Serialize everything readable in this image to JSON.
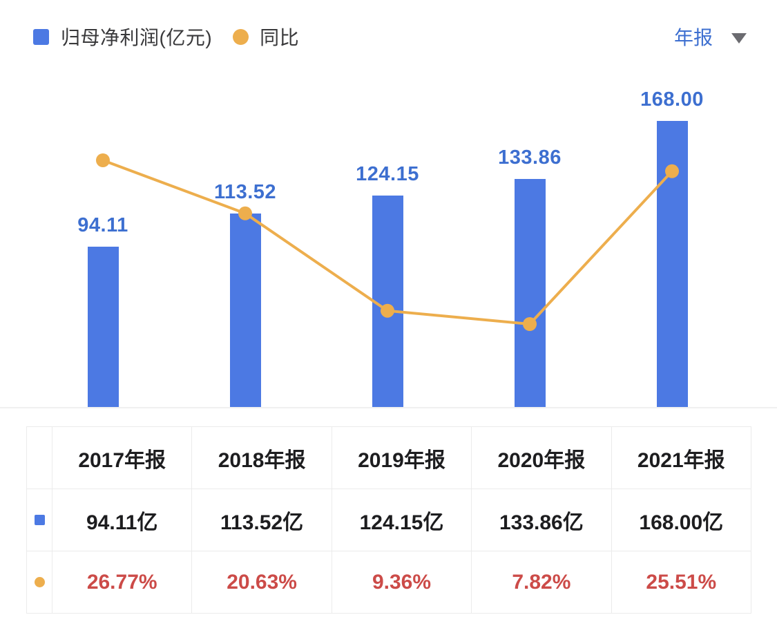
{
  "colors": {
    "bar_blue": "#4C79E3",
    "value_label_blue": "#3D6FD0",
    "line_orange": "#EDAE4D",
    "percent_red": "#CC4B48",
    "table_text_dark": "#1D1D1F",
    "border_gray": "#EBEBEB"
  },
  "legend": {
    "items": [
      {
        "label": "归母净利润(亿元)",
        "marker": "square",
        "color": "#4C79E3"
      },
      {
        "label": "同比",
        "marker": "circle",
        "color": "#EDAE4D"
      }
    ]
  },
  "period_selector": {
    "label": "年报"
  },
  "chart_data": {
    "type": "bar",
    "categories": [
      "2017年报",
      "2018年报",
      "2019年报",
      "2020年报",
      "2021年报"
    ],
    "series": [
      {
        "name": "归母净利润(亿元)",
        "type": "bar",
        "unit": "亿元",
        "values": [
          94.11,
          113.52,
          124.15,
          133.86,
          168.0
        ],
        "value_labels": [
          "94.11",
          "113.52",
          "124.15",
          "133.86",
          "168.00"
        ],
        "color": "#4C79E3"
      },
      {
        "name": "同比",
        "type": "line",
        "unit": "%",
        "values": [
          26.77,
          20.63,
          9.36,
          7.82,
          25.51
        ],
        "value_labels": [
          "26.77%",
          "20.63%",
          "9.36%",
          "7.82%",
          "25.51%"
        ],
        "color": "#EDAE4D"
      }
    ],
    "title": "",
    "xlabel": "",
    "ylabel": "",
    "grid": false,
    "axes_hidden": true,
    "legend_position": "top-left",
    "value_labels": "above-bars"
  },
  "table": {
    "header": [
      "",
      "2017年报",
      "2018年报",
      "2019年报",
      "2020年报",
      "2021年报"
    ],
    "rows": [
      {
        "series": "归母净利润(亿元)",
        "marker": "square",
        "marker_color": "#4C79E3",
        "cells": [
          "94.11亿",
          "113.52亿",
          "124.15亿",
          "133.86亿",
          "168.00亿"
        ],
        "style": "value"
      },
      {
        "series": "同比",
        "marker": "circle",
        "marker_color": "#EDAE4D",
        "cells": [
          "26.77%",
          "20.63%",
          "9.36%",
          "7.82%",
          "25.51%"
        ],
        "style": "percent"
      }
    ]
  }
}
